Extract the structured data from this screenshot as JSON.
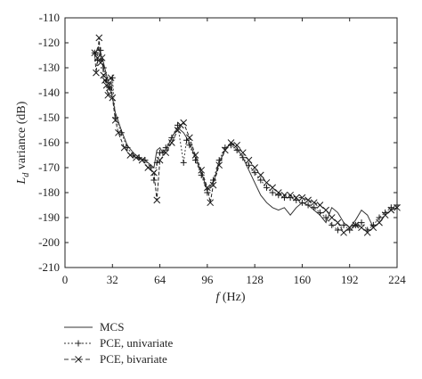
{
  "chart_data": {
    "type": "line",
    "xlabel_italic": "f",
    "xlabel_rest": " (Hz)",
    "ylabel_main": "L",
    "ylabel_sub": "d",
    "ylabel_rest": " variance (dB)",
    "xlim": [
      0,
      224
    ],
    "ylim": [
      -210,
      -110
    ],
    "xticks": [
      0,
      32,
      64,
      96,
      128,
      160,
      192,
      224
    ],
    "yticks": [
      -110,
      -120,
      -130,
      -140,
      -150,
      -160,
      -170,
      -180,
      -190,
      -200,
      -210
    ],
    "grid": false,
    "legend_position": "bottom-left",
    "series": [
      {
        "name": "MCS",
        "marker": "none",
        "x": [
          20,
          22,
          24,
          26,
          28,
          30,
          32,
          34,
          38,
          42,
          46,
          50,
          54,
          58,
          60,
          62,
          64,
          66,
          68,
          72,
          76,
          80,
          84,
          88,
          92,
          96,
          100,
          104,
          108,
          112,
          116,
          120,
          124,
          128,
          132,
          136,
          140,
          144,
          148,
          152,
          156,
          160,
          164,
          168,
          172,
          176,
          180,
          184,
          188,
          192,
          196,
          200,
          204,
          208,
          212,
          216,
          220,
          224
        ],
        "y": [
          -126,
          -122,
          -124,
          -128,
          -133,
          -137,
          -142,
          -148,
          -155,
          -161,
          -164,
          -166,
          -167,
          -169,
          -170,
          -163,
          -162,
          -164,
          -163,
          -158,
          -154,
          -156,
          -160,
          -166,
          -172,
          -179,
          -176,
          -168,
          -163,
          -160,
          -162,
          -166,
          -171,
          -176,
          -181,
          -184,
          -186,
          -187,
          -186,
          -189,
          -186,
          -184,
          -185,
          -187,
          -189,
          -192,
          -186,
          -188,
          -192,
          -194,
          -191,
          -187,
          -189,
          -194,
          -192,
          -189,
          -187,
          -186
        ]
      },
      {
        "name": "PCE, univariate",
        "marker": "plus",
        "x": [
          20,
          22,
          24,
          26,
          28,
          30,
          32,
          34,
          38,
          42,
          46,
          50,
          54,
          58,
          60,
          62,
          64,
          66,
          68,
          72,
          76,
          80,
          82,
          84,
          88,
          92,
          96,
          100,
          104,
          108,
          112,
          116,
          120,
          124,
          128,
          132,
          136,
          140,
          144,
          148,
          152,
          156,
          160,
          164,
          168,
          172,
          176,
          180,
          184,
          188,
          192,
          196,
          200,
          204,
          208,
          212,
          216,
          220,
          224
        ],
        "y": [
          -124,
          -127,
          -123,
          -130,
          -135,
          -138,
          -134,
          -150,
          -156,
          -162,
          -165,
          -166,
          -167,
          -170,
          -175,
          -168,
          -164,
          -164,
          -162,
          -158,
          -153,
          -168,
          -159,
          -161,
          -167,
          -173,
          -180,
          -175,
          -167,
          -162,
          -161,
          -163,
          -166,
          -169,
          -172,
          -175,
          -178,
          -180,
          -181,
          -182,
          -182,
          -183,
          -184,
          -185,
          -186,
          -188,
          -190,
          -193,
          -195,
          -193,
          -195,
          -193,
          -192,
          -195,
          -193,
          -190,
          -188,
          -186,
          -185
        ]
      },
      {
        "name": "PCE, bivariate",
        "marker": "x",
        "x": [
          20,
          21,
          22,
          23,
          24,
          25,
          26,
          27,
          28,
          29,
          30,
          31,
          32,
          34,
          36,
          40,
          44,
          48,
          52,
          56,
          60,
          62,
          64,
          68,
          72,
          76,
          78,
          80,
          84,
          88,
          92,
          96,
          98,
          100,
          104,
          108,
          112,
          116,
          120,
          124,
          128,
          132,
          136,
          140,
          144,
          148,
          152,
          156,
          160,
          164,
          168,
          172,
          176,
          180,
          184,
          188,
          192,
          196,
          200,
          204,
          208,
          212,
          216,
          220,
          224
        ],
        "y": [
          -124,
          -132,
          -126,
          -118,
          -128,
          -126,
          -133,
          -135,
          -137,
          -141,
          -138,
          -134,
          -142,
          -151,
          -156,
          -162,
          -165,
          -166,
          -167,
          -170,
          -172,
          -183,
          -167,
          -164,
          -160,
          -155,
          -153,
          -152,
          -158,
          -165,
          -171,
          -178,
          -184,
          -177,
          -169,
          -163,
          -160,
          -161,
          -164,
          -167,
          -170,
          -173,
          -176,
          -178,
          -180,
          -181,
          -181,
          -182,
          -182,
          -183,
          -184,
          -185,
          -187,
          -190,
          -192,
          -196,
          -194,
          -193,
          -194,
          -196,
          -194,
          -192,
          -189,
          -187,
          -186
        ]
      }
    ]
  }
}
